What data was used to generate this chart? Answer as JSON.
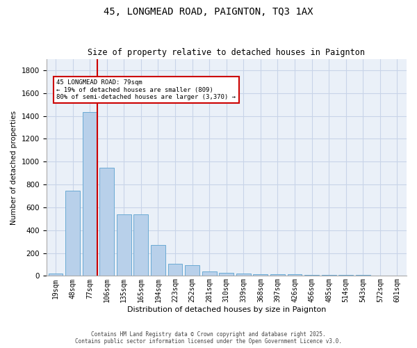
{
  "title1": "45, LONGMEAD ROAD, PAIGNTON, TQ3 1AX",
  "title2": "Size of property relative to detached houses in Paignton",
  "xlabel": "Distribution of detached houses by size in Paignton",
  "ylabel": "Number of detached properties",
  "categories": [
    "19sqm",
    "48sqm",
    "77sqm",
    "106sqm",
    "135sqm",
    "165sqm",
    "194sqm",
    "223sqm",
    "252sqm",
    "281sqm",
    "310sqm",
    "339sqm",
    "368sqm",
    "397sqm",
    "426sqm",
    "456sqm",
    "485sqm",
    "514sqm",
    "543sqm",
    "572sqm",
    "601sqm"
  ],
  "values": [
    22,
    745,
    1437,
    945,
    538,
    538,
    268,
    108,
    95,
    40,
    27,
    20,
    15,
    15,
    12,
    8,
    8,
    8,
    8,
    5,
    5
  ],
  "bar_color": "#b8d0ea",
  "bar_edge_color": "#6aaad4",
  "grid_color": "#c8d4e8",
  "background_color": "#eaf0f8",
  "vline_x_index": 2,
  "vline_color": "#cc0000",
  "annotation_text": "45 LONGMEAD ROAD: 79sqm\n← 19% of detached houses are smaller (809)\n80% of semi-detached houses are larger (3,370) →",
  "annotation_box_color": "#cc0000",
  "footer": "Contains HM Land Registry data © Crown copyright and database right 2025.\nContains public sector information licensed under the Open Government Licence v3.0.",
  "ylim": [
    0,
    1900
  ],
  "yticks": [
    0,
    200,
    400,
    600,
    800,
    1000,
    1200,
    1400,
    1600,
    1800
  ]
}
